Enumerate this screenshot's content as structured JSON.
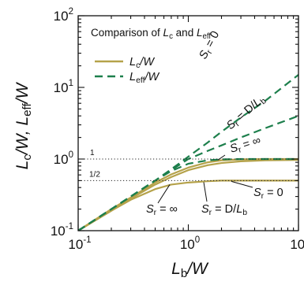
{
  "chart_data": {
    "type": "line",
    "title": "Comparison of L_c and L_eff",
    "title_parts": {
      "prefix": "Comparison of ",
      "a": "L",
      "a_sub": "c",
      "mid": " and ",
      "b": "L",
      "b_sub": "eff"
    },
    "xlabel": {
      "main": "L",
      "sub": "b",
      "suffix": "/W"
    },
    "ylabel": {
      "a": "L",
      "a_sub": "c",
      "sep": "/W, ",
      "b": "L",
      "b_sub": "eff",
      "suffix": "/W"
    },
    "x_scale": "log",
    "y_scale": "log",
    "xlim": [
      0.1,
      10
    ],
    "ylim": [
      0.1,
      100
    ],
    "x_ticks": [
      {
        "value": 0.1,
        "base": "10",
        "exp": "-1"
      },
      {
        "value": 1,
        "base": "10",
        "exp": "0"
      },
      {
        "value": 10,
        "base": "10",
        "exp": "1"
      }
    ],
    "y_ticks": [
      {
        "value": 0.1,
        "base": "10",
        "exp": "-1"
      },
      {
        "value": 1,
        "base": "10",
        "exp": "0"
      },
      {
        "value": 10,
        "base": "10",
        "exp": "1"
      },
      {
        "value": 100,
        "base": "10",
        "exp": "2"
      }
    ],
    "reference_lines": [
      {
        "y": 1,
        "label": "1"
      },
      {
        "y": 0.5,
        "label": "1/2"
      }
    ],
    "legend": {
      "placement": "top-left",
      "entries": [
        {
          "name_main": "L",
          "name_sub": "c",
          "name_suffix": "/W",
          "style": "solid",
          "color": "#b5a24a"
        },
        {
          "name_main": "L",
          "name_sub": "eff",
          "name_suffix": "/W",
          "style": "dashed",
          "color": "#1d7f4c"
        }
      ]
    },
    "colors": {
      "lc": "#b5a24a",
      "leff": "#1d7f4c"
    },
    "series": [
      {
        "group": "Lc",
        "style": "solid",
        "color": "#b5a24a",
        "x": [
          0.1,
          0.2,
          0.3,
          0.5,
          0.7,
          1,
          1.5,
          2,
          3,
          5,
          10
        ],
        "y": [
          0.1,
          0.19,
          0.27,
          0.38,
          0.44,
          0.47,
          0.49,
          0.5,
          0.5,
          0.5,
          0.5
        ]
      },
      {
        "group": "Lc",
        "style": "solid",
        "color": "#b5a24a",
        "x": [
          0.1,
          0.2,
          0.3,
          0.5,
          0.7,
          1,
          1.5,
          2,
          3,
          5,
          10
        ],
        "y": [
          0.1,
          0.19,
          0.28,
          0.44,
          0.56,
          0.7,
          0.82,
          0.88,
          0.93,
          0.96,
          0.97
        ]
      },
      {
        "group": "Lc",
        "style": "solid",
        "color": "#b5a24a",
        "x": [
          0.1,
          0.2,
          0.3,
          0.5,
          0.7,
          1,
          1.5,
          2,
          3,
          5,
          10
        ],
        "y": [
          0.1,
          0.2,
          0.29,
          0.47,
          0.61,
          0.76,
          0.9,
          0.96,
          0.99,
          1,
          1
        ]
      },
      {
        "group": "Leff",
        "style": "dashed",
        "color": "#1d7f4c",
        "x": [
          0.1,
          0.2,
          0.3,
          0.5,
          0.7,
          1,
          1.5,
          2,
          3,
          5,
          10
        ],
        "y": [
          0.1,
          0.2,
          0.3,
          0.5,
          0.72,
          1.08,
          1.7,
          2.4,
          3.8,
          6.5,
          15
        ]
      },
      {
        "group": "Leff",
        "style": "dashed",
        "color": "#1d7f4c",
        "x": [
          0.1,
          0.2,
          0.3,
          0.5,
          0.7,
          1,
          1.5,
          2,
          3,
          5,
          10
        ],
        "y": [
          0.1,
          0.2,
          0.3,
          0.5,
          0.7,
          1.0,
          1.3,
          1.55,
          2.0,
          2.7,
          4.0
        ]
      },
      {
        "group": "Leff",
        "style": "dashed",
        "color": "#1d7f4c",
        "x": [
          0.1,
          0.2,
          0.3,
          0.5,
          0.7,
          1,
          1.5,
          2,
          3,
          5,
          10
        ],
        "y": [
          0.1,
          0.2,
          0.3,
          0.5,
          0.68,
          0.86,
          0.96,
          0.99,
          1,
          1,
          1
        ]
      }
    ],
    "annotations": {
      "sr0_dashed": {
        "s": "S",
        "sub": "r",
        "rest": " = 0"
      },
      "srd_dashed": {
        "s": "S",
        "sub": "r",
        "rest": " = D/",
        "l": "L",
        "lsub": "b"
      },
      "srinf_dashed": {
        "s": "S",
        "sub": "r",
        "rest": " = ∞"
      },
      "sr0_solid": {
        "s": "S",
        "sub": "r",
        "rest": " = 0"
      },
      "srinf_solid": {
        "s": "S",
        "sub": "r",
        "rest": " = ∞"
      },
      "srd_solid": {
        "s": "S",
        "sub": "r",
        "rest": " = D/",
        "l": "L",
        "lsub": "b"
      }
    }
  }
}
